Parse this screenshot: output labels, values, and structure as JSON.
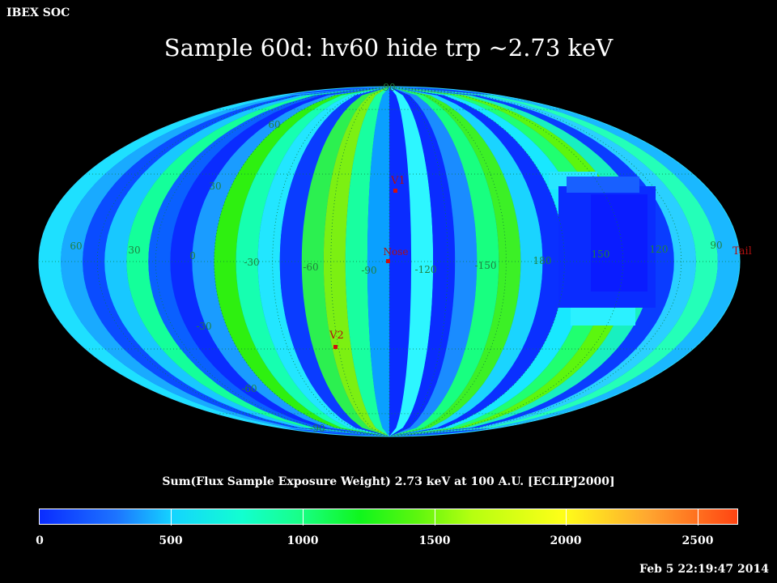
{
  "header": {
    "org": "IBEX SOC",
    "title": "Sample 60d: hv60 hide trp ~2.73 keV"
  },
  "map": {
    "projection": "Mollweide (ecliptic)",
    "lat_labels": [
      "90",
      "60",
      "30",
      "0",
      "-30",
      "-60",
      "-90"
    ],
    "lon_labels": [
      "60",
      "30",
      "0",
      "-30",
      "-60",
      "-90",
      "-120",
      "-150",
      "180",
      "150",
      "120",
      "90"
    ],
    "markers": [
      {
        "name": "V1",
        "color": "#c8102e"
      },
      {
        "name": "Nose",
        "color": "#c8102e"
      },
      {
        "name": "V2",
        "color": "#c8102e"
      },
      {
        "name": "Tail",
        "color": "#c8102e"
      }
    ]
  },
  "colorbar": {
    "title": "Sum(Flux Sample Exposure Weight)  2.73 keV at 100 A.U. [ECLIPJ2000]",
    "ticks": [
      "0",
      "500",
      "1000",
      "1500",
      "2000",
      "2500"
    ],
    "min": 0,
    "max": 2650,
    "colors": [
      "#0a2cff",
      "#1d74ff",
      "#14d4ff",
      "#12ffd0",
      "#18ff8a",
      "#10f61c",
      "#5cf60e",
      "#b6ff10",
      "#ffff18",
      "#ffa830",
      "#ff4412"
    ]
  },
  "footer": {
    "timestamp": "Feb  5 22:19:47 2014"
  }
}
